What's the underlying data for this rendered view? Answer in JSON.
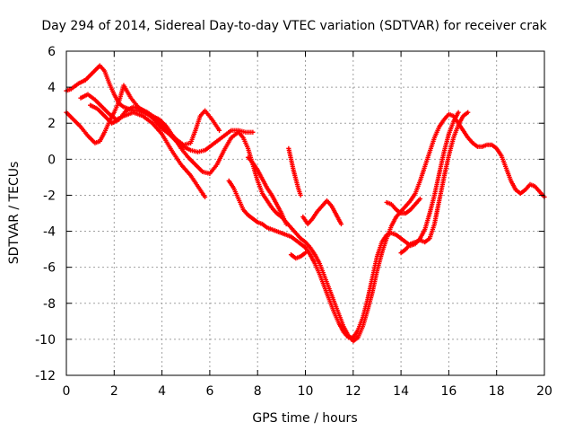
{
  "chart_data": {
    "type": "scatter",
    "title": "Day 294 of 2014, Sidereal Day-to-day VTEC variation (SDTVAR) for receiver crak",
    "xlabel": "GPS time / hours",
    "ylabel": "SDTVAR / TECUs",
    "xlim": [
      0,
      20
    ],
    "ylim": [
      -12,
      6
    ],
    "grid": true,
    "marker": "+",
    "x_ticks": [
      0,
      2,
      4,
      6,
      8,
      10,
      12,
      14,
      16,
      18,
      20
    ],
    "y_ticks": [
      -12,
      -10,
      -8,
      -6,
      -4,
      -2,
      0,
      2,
      4,
      6
    ],
    "series": [
      {
        "name": "SDTVAR",
        "color": "#ff0000",
        "segments": [
          {
            "x": [
              0.0,
              0.2,
              0.5,
              0.8,
              1.1,
              1.4,
              1.6,
              1.8,
              2.0,
              2.2,
              2.4,
              2.6,
              2.8,
              3.0,
              3.2,
              3.4,
              3.6,
              3.8,
              4.0,
              4.3,
              4.6,
              4.9,
              5.2,
              5.5,
              5.8,
              6.0,
              6.3,
              6.6,
              6.9,
              7.2,
              7.5,
              7.8
            ],
            "y": [
              3.8,
              3.9,
              4.2,
              4.4,
              4.8,
              5.2,
              4.9,
              4.2,
              3.6,
              3.1,
              2.9,
              2.8,
              2.7,
              2.7,
              2.6,
              2.5,
              2.3,
              2.0,
              1.7,
              1.4,
              1.0,
              0.7,
              0.5,
              0.4,
              0.5,
              0.7,
              1.0,
              1.3,
              1.6,
              1.6,
              1.5,
              1.5
            ]
          },
          {
            "x": [
              0.0,
              0.3,
              0.6,
              0.9,
              1.2,
              1.4,
              1.6,
              1.8,
              2.0,
              2.2,
              2.4,
              2.7,
              3.0,
              3.3,
              3.6,
              3.9,
              4.2,
              4.5,
              4.8,
              5.1,
              5.4,
              5.7,
              6.0,
              6.3,
              6.6,
              6.9,
              7.2,
              7.4,
              7.6,
              7.8,
              8.0,
              8.2,
              8.4,
              8.6,
              8.8,
              9.0,
              9.2,
              9.4,
              9.6,
              9.8,
              10.0,
              10.2,
              10.4,
              10.6,
              10.8,
              11.0,
              11.2,
              11.4,
              11.6,
              11.8,
              12.0,
              12.2,
              12.4,
              12.6,
              12.8,
              13.0,
              13.2,
              13.4,
              13.6,
              13.8,
              14.0,
              14.2,
              14.4,
              14.6,
              14.8,
              15.0,
              15.2,
              15.4,
              15.6,
              15.8,
              16.0,
              16.2,
              16.4,
              16.6,
              16.8,
              17.0,
              17.2,
              17.4,
              17.6,
              17.8,
              18.0,
              18.2,
              18.4,
              18.6,
              18.8,
              19.0,
              19.2,
              19.4,
              19.6,
              19.8,
              20.0
            ],
            "y": [
              2.6,
              2.2,
              1.8,
              1.3,
              0.9,
              1.0,
              1.5,
              2.1,
              2.6,
              3.2,
              4.1,
              3.4,
              2.9,
              2.6,
              2.4,
              2.2,
              1.8,
              1.2,
              0.6,
              0.1,
              -0.3,
              -0.7,
              -0.8,
              -0.3,
              0.5,
              1.2,
              1.5,
              1.2,
              0.6,
              -0.3,
              -1.2,
              -1.9,
              -2.3,
              -2.7,
              -3.0,
              -3.2,
              -3.5,
              -3.8,
              -4.1,
              -4.4,
              -4.6,
              -4.9,
              -5.3,
              -5.8,
              -6.5,
              -7.2,
              -7.9,
              -8.6,
              -9.3,
              -9.8,
              -10.1,
              -9.9,
              -9.3,
              -8.4,
              -7.4,
              -6.2,
              -5.2,
              -4.4,
              -3.7,
              -3.2,
              -2.9,
              -2.6,
              -2.3,
              -1.9,
              -1.2,
              -0.4,
              0.4,
              1.2,
              1.8,
              2.2,
              2.5,
              2.4,
              2.0,
              1.6,
              1.2,
              0.9,
              0.7,
              0.7,
              0.8,
              0.8,
              0.6,
              0.2,
              -0.5,
              -1.2,
              -1.7,
              -1.9,
              -1.7,
              -1.4,
              -1.5,
              -1.8,
              -2.1
            ]
          },
          {
            "x": [
              0.6,
              0.9,
              1.2,
              1.5,
              1.8,
              2.1,
              2.4,
              2.8,
              3.2,
              3.6,
              4.0,
              4.4,
              4.8,
              5.2,
              5.5,
              5.8
            ],
            "y": [
              3.4,
              3.6,
              3.3,
              2.9,
              2.5,
              2.2,
              2.4,
              2.6,
              2.4,
              2.0,
              1.4,
              0.5,
              -0.3,
              -0.9,
              -1.5,
              -2.1
            ]
          },
          {
            "x": [
              1.0,
              1.3,
              1.6,
              1.9,
              2.2,
              2.5,
              2.8,
              3.1,
              3.4,
              3.7,
              4.0,
              4.3,
              4.6,
              4.9,
              5.2,
              5.4,
              5.6,
              5.8,
              6.1,
              6.4
            ],
            "y": [
              3.0,
              2.8,
              2.4,
              2.0,
              2.2,
              2.7,
              2.9,
              2.8,
              2.6,
              2.3,
              1.9,
              1.5,
              1.1,
              0.8,
              0.9,
              1.6,
              2.4,
              2.7,
              2.2,
              1.6
            ]
          },
          {
            "x": [
              6.8,
              7.0,
              7.2,
              7.4,
              7.6,
              7.8,
              8.0,
              8.2,
              8.4,
              8.6,
              8.8,
              9.0,
              9.2,
              9.4,
              9.6,
              9.8,
              10.0,
              10.2,
              10.4,
              10.6,
              10.8,
              11.0,
              11.2,
              11.4,
              11.6,
              11.8,
              12.0,
              12.2,
              12.4,
              12.6,
              12.8,
              13.0,
              13.2,
              13.4,
              13.6,
              13.8,
              14.0,
              14.2,
              14.4,
              14.6,
              14.8,
              15.0,
              15.2,
              15.4,
              15.6,
              15.8,
              16.0,
              16.2,
              16.4
            ],
            "y": [
              -1.2,
              -1.6,
              -2.2,
              -2.8,
              -3.1,
              -3.3,
              -3.5,
              -3.6,
              -3.8,
              -3.9,
              -4.0,
              -4.1,
              -4.2,
              -4.3,
              -4.5,
              -4.7,
              -4.9,
              -5.3,
              -5.8,
              -6.4,
              -7.1,
              -7.8,
              -8.5,
              -9.1,
              -9.6,
              -9.9,
              -9.9,
              -9.5,
              -8.8,
              -7.8,
              -6.6,
              -5.4,
              -4.6,
              -4.2,
              -4.1,
              -4.2,
              -4.4,
              -4.6,
              -4.8,
              -4.7,
              -4.4,
              -3.9,
              -3.0,
              -2.0,
              -0.8,
              0.4,
              1.4,
              2.1,
              2.6
            ]
          },
          {
            "x": [
              7.6,
              7.8,
              8.0,
              8.2,
              8.4,
              8.6,
              8.8,
              9.0,
              9.2
            ],
            "y": [
              0.1,
              -0.2,
              -0.6,
              -1.1,
              -1.6,
              -2.0,
              -2.5,
              -3.0,
              -3.6
            ]
          },
          {
            "x": [
              9.3,
              9.4,
              9.5,
              9.6,
              9.7,
              9.8
            ],
            "y": [
              0.6,
              0.0,
              -0.6,
              -1.1,
              -1.6,
              -2.0
            ]
          },
          {
            "x": [
              9.9,
              10.1,
              10.3,
              10.5,
              10.7,
              10.9,
              11.1,
              11.3,
              11.5
            ],
            "y": [
              -3.2,
              -3.6,
              -3.3,
              -2.9,
              -2.6,
              -2.3,
              -2.6,
              -3.1,
              -3.6
            ]
          },
          {
            "x": [
              9.4,
              9.6,
              9.8,
              10.0
            ],
            "y": [
              -5.3,
              -5.5,
              -5.4,
              -5.2
            ]
          },
          {
            "x": [
              13.4,
              13.6,
              13.8,
              14.0,
              14.2,
              14.4,
              14.6,
              14.8
            ],
            "y": [
              -2.4,
              -2.5,
              -2.8,
              -3.0,
              -3.0,
              -2.8,
              -2.5,
              -2.2
            ]
          },
          {
            "x": [
              14.0,
              14.2,
              14.4,
              14.6,
              14.8,
              15.0,
              15.2,
              15.4,
              15.6,
              15.8,
              16.0,
              16.2,
              16.4,
              16.6,
              16.8
            ],
            "y": [
              -5.2,
              -5.0,
              -4.7,
              -4.6,
              -4.5,
              -4.6,
              -4.4,
              -3.6,
              -2.3,
              -1.0,
              0.2,
              1.2,
              1.9,
              2.4,
              2.6
            ]
          }
        ]
      }
    ]
  }
}
